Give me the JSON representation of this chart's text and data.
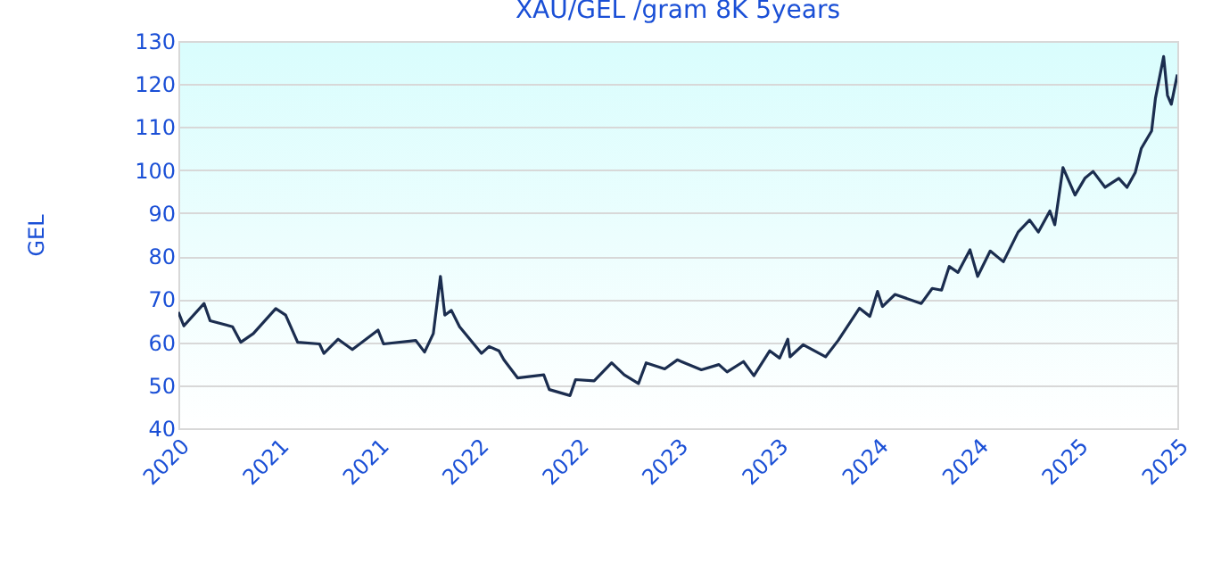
{
  "chart_data": {
    "type": "line",
    "title": "XAU/GEL /gram 8K 5years",
    "ylabel": "GEL",
    "x": [
      "2020-10-19",
      "2020-10-29",
      "2020-12-05",
      "2020-12-16",
      "2021-01-26",
      "2021-02-10",
      "2021-03-05",
      "2021-04-15",
      "2021-05-03",
      "2021-05-25",
      "2021-07-04",
      "2021-07-12",
      "2021-08-07",
      "2021-09-02",
      "2021-10-19",
      "2021-10-29",
      "2021-12-27",
      "2022-01-12",
      "2022-01-28",
      "2022-02-10",
      "2022-02-18",
      "2022-03-02",
      "2022-03-17",
      "2022-04-26",
      "2022-05-10",
      "2022-05-28",
      "2022-06-06",
      "2022-07-01",
      "2022-08-18",
      "2022-08-28",
      "2022-10-05",
      "2022-10-15",
      "2022-11-18",
      "2022-12-20",
      "2023-01-12",
      "2023-02-07",
      "2023-02-21",
      "2023-03-27",
      "2023-04-19",
      "2023-06-02",
      "2023-07-04",
      "2023-07-19",
      "2023-08-18",
      "2023-09-06",
      "2023-10-05",
      "2023-10-23",
      "2023-11-07",
      "2023-11-11",
      "2023-12-05",
      "2024-01-15",
      "2024-02-07",
      "2024-03-17",
      "2024-04-05",
      "2024-04-19",
      "2024-04-28",
      "2024-05-21",
      "2024-07-08",
      "2024-07-28",
      "2024-08-14",
      "2024-08-28",
      "2024-09-13",
      "2024-10-05",
      "2024-10-19",
      "2024-11-11",
      "2024-12-05",
      "2025-01-01",
      "2025-01-22",
      "2025-02-07",
      "2025-02-28",
      "2025-03-09",
      "2025-03-24",
      "2025-04-15",
      "2025-05-03",
      "2025-05-18",
      "2025-06-09",
      "2025-07-04",
      "2025-07-19",
      "2025-08-03",
      "2025-08-14",
      "2025-09-02",
      "2025-09-09",
      "2025-09-24",
      "2025-10-01",
      "2025-10-08",
      "2025-10-19"
    ],
    "series": [
      {
        "color": "#1b2d4f",
        "values": [
          67,
          63.8,
          69,
          65,
          63.6,
          60,
          62,
          67.8,
          66.3,
          60,
          59.6,
          57.4,
          60.7,
          58.3,
          62.8,
          59.6,
          60.4,
          57.7,
          62,
          75.3,
          66.3,
          67.4,
          63.6,
          57.4,
          59,
          58,
          55.9,
          51.7,
          52.4,
          49,
          47.6,
          51.3,
          51,
          55.2,
          52.4,
          50.4,
          55.2,
          53.8,
          55.9,
          53.6,
          54.8,
          53.1,
          55.5,
          52.2,
          58,
          56.3,
          60.7,
          56.6,
          59.4,
          56.6,
          60.4,
          67.9,
          66,
          71.8,
          68.3,
          71.1,
          69,
          72.5,
          72.1,
          77.6,
          76.2,
          81.5,
          75.3,
          81.2,
          78.7,
          85.6,
          88.4,
          85.6,
          90.5,
          87.3,
          100.6,
          94.2,
          98.1,
          99.7,
          96,
          98.1,
          96,
          99.4,
          105,
          109.1,
          116.7,
          126.4,
          117.4,
          115.3,
          122.2
        ]
      }
    ],
    "xlim": [
      "2020-10-19",
      "2025-10-19"
    ],
    "xticks": [
      {
        "value": "2020-10-19",
        "label": "2020"
      },
      {
        "value": "2021-04-19",
        "label": "2021"
      },
      {
        "value": "2021-10-19",
        "label": "2021"
      },
      {
        "value": "2022-04-19",
        "label": "2022"
      },
      {
        "value": "2022-10-19",
        "label": "2022"
      },
      {
        "value": "2023-04-19",
        "label": "2023"
      },
      {
        "value": "2023-10-19",
        "label": "2023"
      },
      {
        "value": "2024-04-19",
        "label": "2024"
      },
      {
        "value": "2024-10-19",
        "label": "2024"
      },
      {
        "value": "2025-04-19",
        "label": "2025"
      },
      {
        "value": "2025-10-19",
        "label": "2025"
      }
    ],
    "ylim": [
      40,
      130
    ],
    "yticks": [
      40,
      50,
      60,
      70,
      80,
      90,
      100,
      110,
      120,
      130
    ],
    "grid": "y",
    "marker": "none",
    "line_style": "solid"
  }
}
